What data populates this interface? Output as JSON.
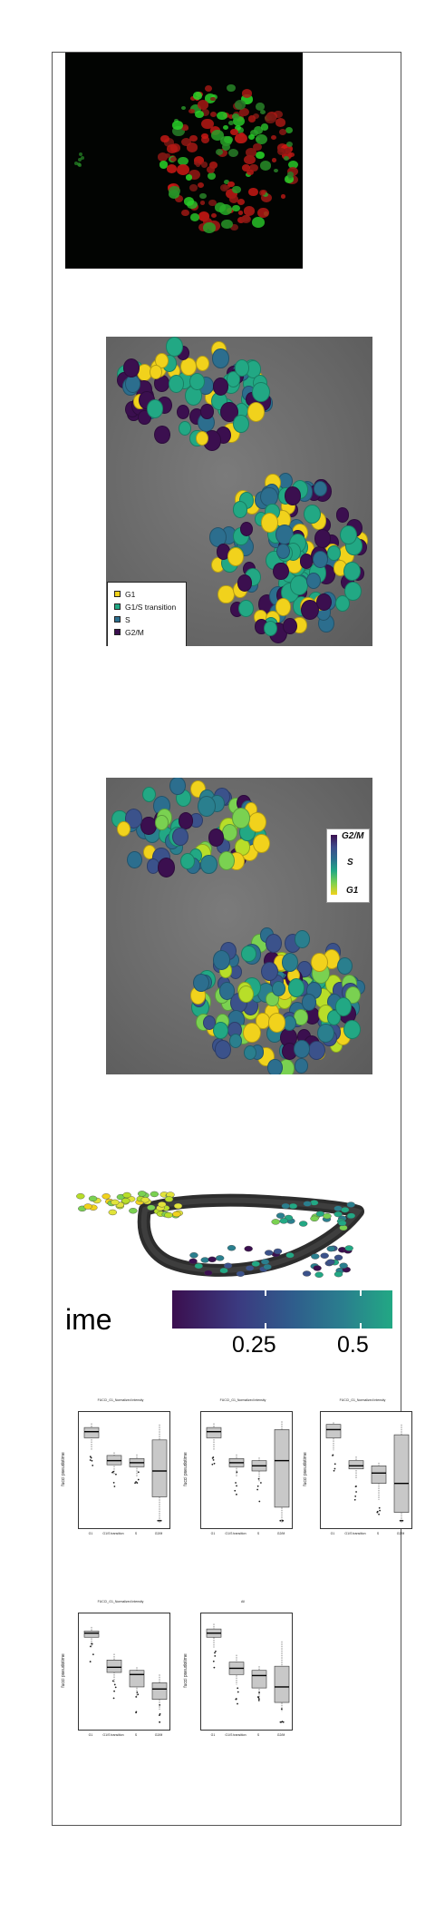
{
  "legend": {
    "items": [
      {
        "label": "G1",
        "color": "#f1d21c"
      },
      {
        "label": "G1/S transition",
        "color": "#22a884"
      },
      {
        "label": "S",
        "color": "#2c6e8e"
      },
      {
        "label": "G2/M",
        "color": "#3b0f4f"
      }
    ]
  },
  "colorbar_vertical": {
    "top": "G2/M",
    "middle": "S",
    "bottom": "G1"
  },
  "trajectory": {
    "axis_word": "ime",
    "tick_1": "0.25",
    "tick_2": "0.5"
  },
  "boxplots": [
    {
      "title": "FUCCI_G1_Normalized intensity",
      "ylabel": "fucci pseudotime"
    },
    {
      "title": "FUCCI_G1_Normalized intensity",
      "ylabel": "fucci pseudotime"
    },
    {
      "title": "FUCCI_G1_Normalized intensity",
      "ylabel": "fucci pseudotime"
    },
    {
      "title": "FUCCI_G1_Normalized intensity",
      "ylabel": "fucci pseudotime"
    },
    {
      "title": "All",
      "ylabel": "fucci pseudotime"
    }
  ],
  "x_categories": [
    "G1",
    "G1/S transition",
    "S",
    "G2/M"
  ],
  "colors": {
    "viridis_dark": "#3b0f4f",
    "viridis_teal": "#22a884",
    "viridis_yellow": "#f1d21c",
    "box_fill": "#c8c8c8"
  }
}
